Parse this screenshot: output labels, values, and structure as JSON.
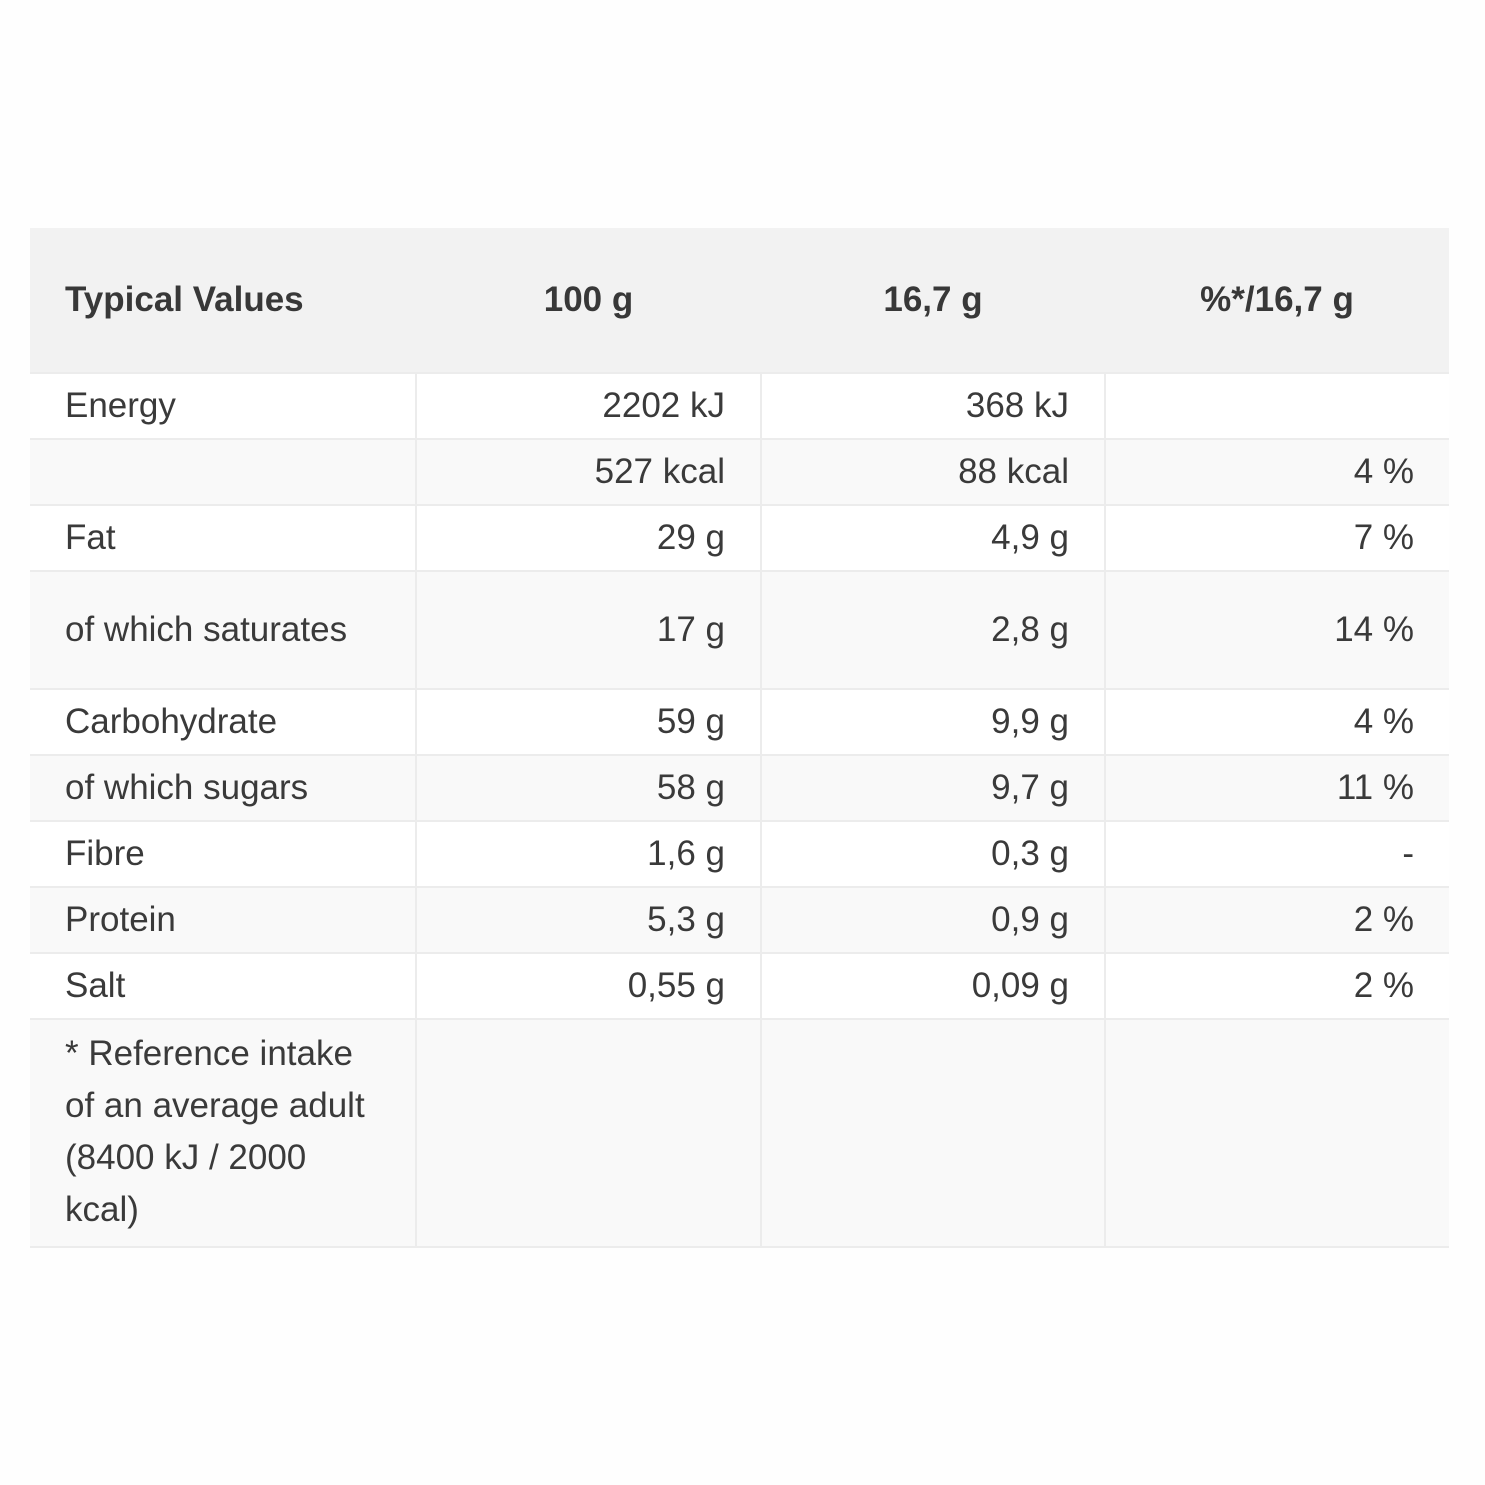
{
  "table": {
    "headers": [
      "Typical Values",
      "100 g",
      "16,7 g",
      "%*/16,7 g"
    ],
    "rows": [
      {
        "label": "Energy",
        "per100": "2202 kJ",
        "perServing": "368 kJ",
        "ri": ""
      },
      {
        "label": "",
        "per100": "527 kcal",
        "perServing": "88 kcal",
        "ri": "4 %"
      },
      {
        "label": "Fat",
        "per100": "29 g",
        "perServing": "4,9 g",
        "ri": "7 %"
      },
      {
        "label": "of which saturates",
        "per100": "17 g",
        "perServing": "2,8 g",
        "ri": "14 %"
      },
      {
        "label": "Carbohydrate",
        "per100": "59 g",
        "perServing": "9,9 g",
        "ri": "4 %"
      },
      {
        "label": "of which sugars",
        "per100": "58 g",
        "perServing": "9,7 g",
        "ri": "11 %"
      },
      {
        "label": "Fibre",
        "per100": "1,6 g",
        "perServing": "0,3 g",
        "ri": "-"
      },
      {
        "label": "Protein",
        "per100": "5,3 g",
        "perServing": "0,9 g",
        "ri": "2 %"
      },
      {
        "label": "Salt",
        "per100": "0,55 g",
        "perServing": "0,09 g",
        "ri": "2 %"
      }
    ],
    "footnote": "* Reference intake of an average adult (8400 kJ / 2000 kcal)"
  }
}
